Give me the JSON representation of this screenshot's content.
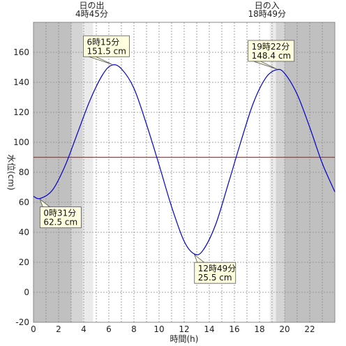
{
  "chart_data": {
    "type": "line",
    "xlabel": "時間(h)",
    "ylabel": "水位(cm)",
    "xlim": [
      0,
      24
    ],
    "ylim": [
      -20,
      180
    ],
    "x_ticks": [
      0,
      2,
      4,
      6,
      8,
      10,
      12,
      14,
      16,
      18,
      20,
      22
    ],
    "y_ticks": [
      -20,
      0,
      20,
      40,
      60,
      80,
      100,
      120,
      140,
      160
    ],
    "grid": true,
    "reference_line": {
      "y": 90,
      "color": "#e02020"
    },
    "line_color": "#0000cc",
    "series": [
      {
        "x": [
          0,
          0.52,
          1.5,
          2.5,
          3.5,
          4.5,
          5.5,
          6.25,
          7,
          8,
          9,
          10,
          11,
          12,
          12.82,
          13.5,
          14.5,
          15.5,
          16.5,
          17.5,
          18.5,
          19.37,
          20,
          21,
          22,
          23,
          24
        ],
        "values": [
          64,
          62.5,
          68,
          84,
          106,
          128,
          145,
          151.5,
          149,
          136,
          112,
          85,
          57,
          34,
          25.5,
          28,
          45,
          72,
          100,
          126,
          143,
          148.4,
          146,
          132,
          110,
          86,
          67
        ]
      }
    ],
    "sunrise": {
      "label_line1": "日の出",
      "label_line2": "4時45分",
      "time": 4.75
    },
    "sunset": {
      "label_line1": "日の入",
      "label_line2": "18時49分",
      "time": 18.82
    },
    "twilight_morning": [
      3.0,
      4.75
    ],
    "twilight_evening": [
      18.82,
      20.0
    ],
    "callouts": [
      {
        "x": 0.52,
        "y": 62.5,
        "line1": "0時31分",
        "line2": "62.5 cm",
        "position": "below"
      },
      {
        "x": 6.25,
        "y": 151.5,
        "line1": "6時15分",
        "line2": "151.5 cm",
        "position": "above"
      },
      {
        "x": 12.82,
        "y": 25.5,
        "line1": "12時49分",
        "line2": "25.5 cm",
        "position": "below"
      },
      {
        "x": 19.37,
        "y": 148.4,
        "line1": "19時22分",
        "line2": "148.4 cm",
        "position": "above"
      }
    ],
    "colors": {
      "night": "#c0c0c0",
      "twilight_dark": "#d4d4d4",
      "twilight_light": "#ebebeb",
      "day": "#ffffff",
      "callout_bg": "#ffffe0"
    }
  }
}
